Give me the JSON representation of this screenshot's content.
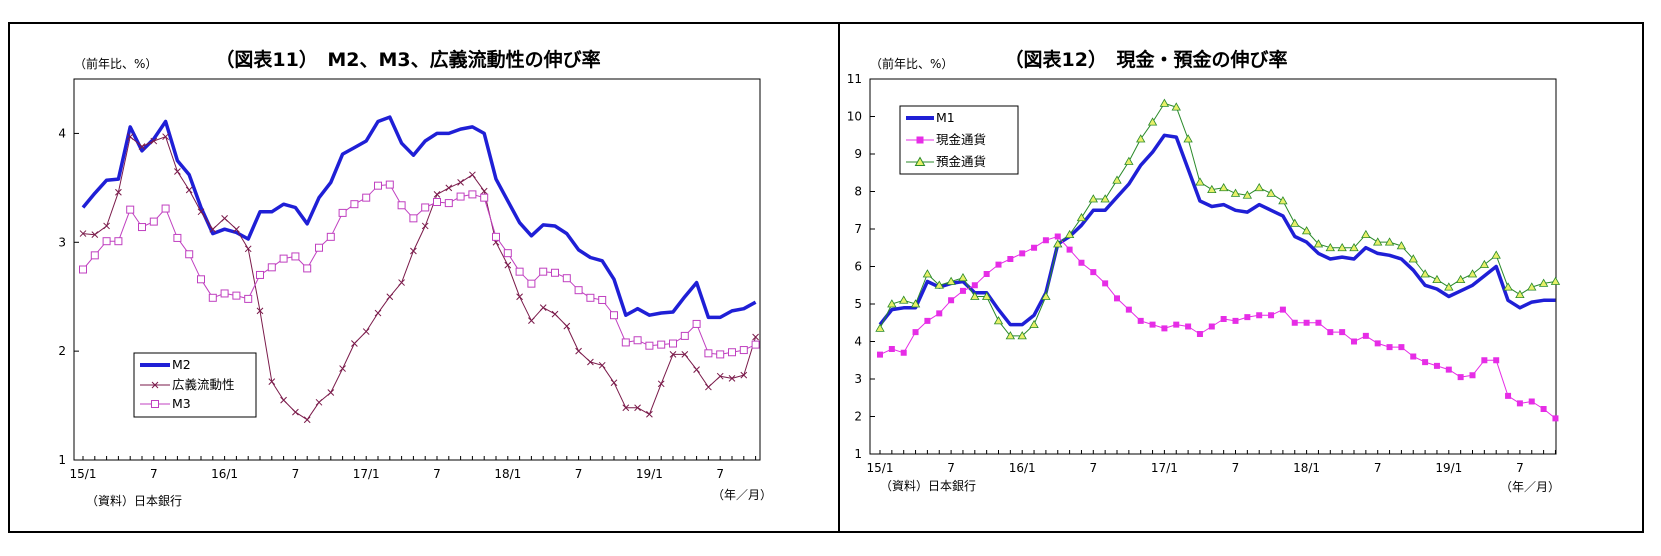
{
  "chart_data": [
    {
      "type": "line",
      "title": "（図表11）　M2、M3、広義流動性の伸び率",
      "unit_label": "（前年比、%）",
      "source": "（資料）日本銀行",
      "xunit": "（年／月）",
      "x_tick_labels": [
        "15/1",
        "7",
        "16/1",
        "7",
        "17/1",
        "7",
        "18/1",
        "7",
        "19/1",
        "7"
      ],
      "y_tick_labels": [
        "1",
        "2",
        "3",
        "4"
      ],
      "ylim": [
        1,
        4.5
      ],
      "colors": {
        "M2": "#1f1fd6",
        "broad": "#7a1a4a",
        "M3": "#c040c0"
      },
      "series": [
        {
          "name": "M2",
          "values": [
            3.32,
            3.45,
            3.57,
            3.58,
            4.06,
            3.84,
            3.95,
            4.11,
            3.75,
            3.62,
            3.32,
            3.08,
            3.12,
            3.09,
            3.03,
            3.28,
            3.28,
            3.35,
            3.32,
            3.17,
            3.41,
            3.55,
            3.81,
            3.87,
            3.93,
            4.11,
            4.15,
            3.91,
            3.8,
            3.93,
            4.0,
            4.0,
            4.04,
            4.06,
            4.0,
            3.58,
            3.38,
            3.18,
            3.06,
            3.16,
            3.15,
            3.08,
            2.93,
            2.86,
            2.83,
            2.66,
            2.33,
            2.39,
            2.33,
            2.35,
            2.36,
            2.5,
            2.63,
            2.31,
            2.31,
            2.37,
            2.39,
            2.45
          ]
        },
        {
          "name": "広義流動性",
          "values": [
            3.08,
            3.07,
            3.15,
            3.46,
            3.97,
            3.88,
            3.93,
            3.97,
            3.65,
            3.48,
            3.28,
            3.12,
            3.22,
            3.12,
            2.94,
            2.37,
            1.72,
            1.55,
            1.44,
            1.37,
            1.53,
            1.62,
            1.84,
            2.07,
            2.18,
            2.35,
            2.5,
            2.63,
            2.92,
            3.15,
            3.44,
            3.5,
            3.55,
            3.62,
            3.47,
            3.0,
            2.79,
            2.5,
            2.28,
            2.4,
            2.34,
            2.23,
            2.0,
            1.9,
            1.87,
            1.71,
            1.48,
            1.48,
            1.42,
            1.7,
            1.97,
            1.97,
            1.83,
            1.67,
            1.77,
            1.75,
            1.78,
            2.13
          ]
        },
        {
          "name": "M3",
          "values": [
            2.75,
            2.88,
            3.01,
            3.01,
            3.3,
            3.14,
            3.19,
            3.31,
            3.04,
            2.89,
            2.66,
            2.49,
            2.53,
            2.51,
            2.48,
            2.7,
            2.77,
            2.85,
            2.87,
            2.76,
            2.95,
            3.05,
            3.27,
            3.35,
            3.41,
            3.52,
            3.53,
            3.34,
            3.22,
            3.32,
            3.37,
            3.36,
            3.42,
            3.44,
            3.41,
            3.05,
            2.9,
            2.73,
            2.62,
            2.73,
            2.72,
            2.67,
            2.56,
            2.49,
            2.47,
            2.33,
            2.08,
            2.1,
            2.05,
            2.06,
            2.07,
            2.14,
            2.25,
            1.98,
            1.97,
            1.99,
            2.01,
            2.06
          ]
        }
      ]
    },
    {
      "type": "line",
      "title": "（図表12）　現金・預金の伸び率",
      "unit_label": "（前年比、%）",
      "source": "（資料）日本銀行",
      "xunit": "（年／月）",
      "x_tick_labels": [
        "15/1",
        "7",
        "16/1",
        "7",
        "17/1",
        "7",
        "18/1",
        "7",
        "19/1",
        "7"
      ],
      "y_tick_labels": [
        "1",
        "2",
        "3",
        "4",
        "5",
        "6",
        "7",
        "8",
        "9",
        "10",
        "11"
      ],
      "ylim": [
        1,
        11
      ],
      "colors": {
        "M1": "#1f1fd6",
        "cash": "#e62de6",
        "deposit": "#2a8a2a",
        "deposit_fill": "#e8f06a"
      },
      "series": [
        {
          "name": "M1",
          "values": [
            4.45,
            4.85,
            4.9,
            4.9,
            5.6,
            5.45,
            5.55,
            5.6,
            5.3,
            5.3,
            4.85,
            4.45,
            4.45,
            4.7,
            5.3,
            6.6,
            6.8,
            7.1,
            7.5,
            7.5,
            7.85,
            8.2,
            8.7,
            9.05,
            9.5,
            9.45,
            8.6,
            7.75,
            7.6,
            7.65,
            7.5,
            7.45,
            7.65,
            7.5,
            7.35,
            6.8,
            6.65,
            6.35,
            6.2,
            6.25,
            6.2,
            6.5,
            6.35,
            6.3,
            6.2,
            5.9,
            5.5,
            5.4,
            5.2,
            5.35,
            5.5,
            5.75,
            6.0,
            5.1,
            4.9,
            5.05,
            5.1,
            5.1
          ]
        },
        {
          "name": "現金通貨",
          "values": [
            3.65,
            3.8,
            3.7,
            4.25,
            4.55,
            4.75,
            5.1,
            5.35,
            5.5,
            5.8,
            6.05,
            6.2,
            6.35,
            6.5,
            6.7,
            6.8,
            6.45,
            6.1,
            5.85,
            5.55,
            5.15,
            4.85,
            4.55,
            4.45,
            4.35,
            4.45,
            4.4,
            4.2,
            4.4,
            4.6,
            4.55,
            4.65,
            4.7,
            4.7,
            4.85,
            4.5,
            4.5,
            4.5,
            4.25,
            4.25,
            4.0,
            4.15,
            3.95,
            3.85,
            3.85,
            3.6,
            3.45,
            3.35,
            3.25,
            3.05,
            3.1,
            3.5,
            3.5,
            2.55,
            2.35,
            2.4,
            2.2,
            1.95
          ]
        },
        {
          "name": "預金通貨",
          "values": [
            4.35,
            5.0,
            5.1,
            5.0,
            5.8,
            5.5,
            5.6,
            5.7,
            5.2,
            5.2,
            4.55,
            4.15,
            4.15,
            4.45,
            5.2,
            6.6,
            6.85,
            7.3,
            7.8,
            7.8,
            8.3,
            8.8,
            9.4,
            9.85,
            10.35,
            10.25,
            9.4,
            8.25,
            8.05,
            8.1,
            7.95,
            7.9,
            8.1,
            7.95,
            7.75,
            7.15,
            6.95,
            6.6,
            6.5,
            6.5,
            6.5,
            6.85,
            6.65,
            6.65,
            6.55,
            6.2,
            5.8,
            5.65,
            5.45,
            5.65,
            5.8,
            6.05,
            6.3,
            5.45,
            5.25,
            5.45,
            5.55,
            5.6
          ]
        }
      ]
    }
  ]
}
